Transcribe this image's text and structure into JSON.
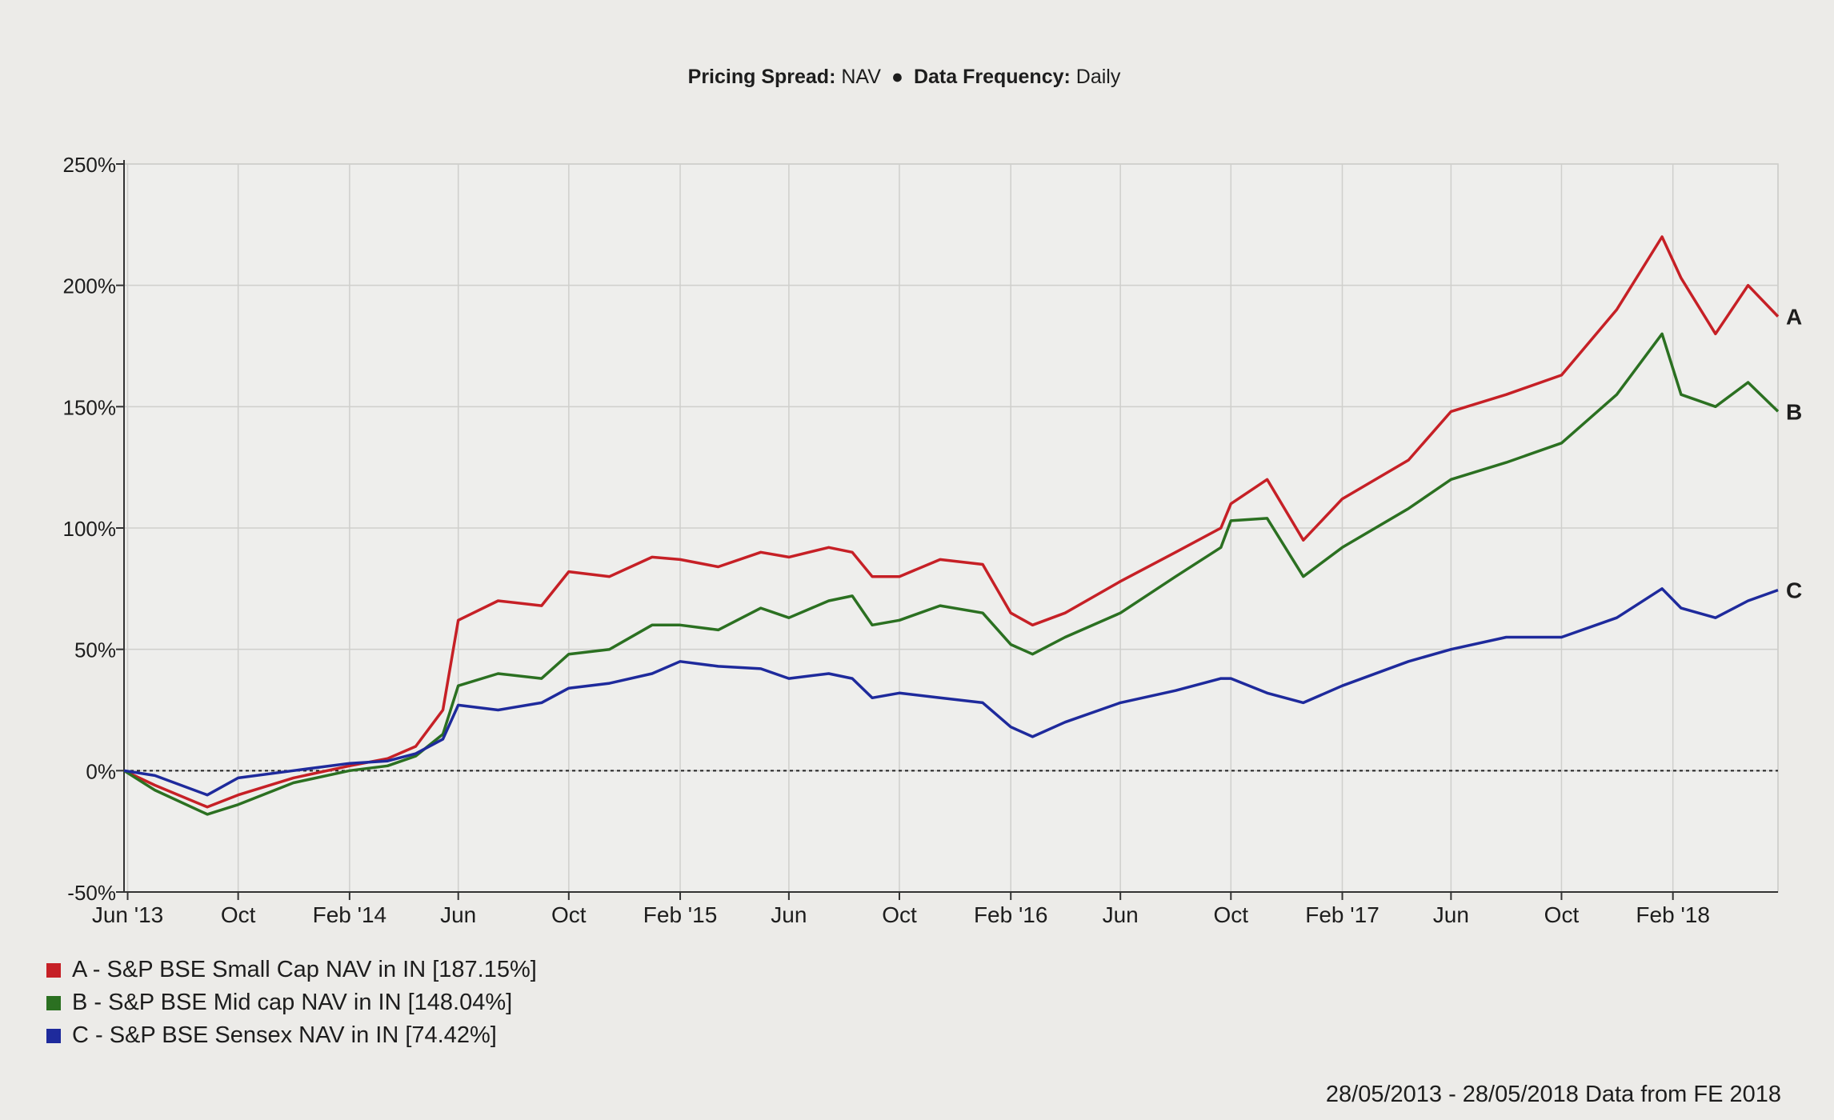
{
  "header": {
    "pricing_label": "Pricing Spread:",
    "pricing_value": "NAV",
    "separator": "●",
    "frequency_label": "Data Frequency:",
    "frequency_value": "Daily"
  },
  "footer_note": "28/05/2013 - 28/05/2018 Data from FE 2018",
  "chart_data": {
    "type": "line",
    "title": "",
    "xlabel": "",
    "ylabel": "",
    "xlim": [
      "2013-05-28",
      "2018-05-28"
    ],
    "ylim": [
      -50,
      250
    ],
    "y_ticks": [
      -50,
      0,
      50,
      100,
      150,
      200,
      250
    ],
    "y_tick_labels": [
      "-50%",
      "0%",
      "50%",
      "100%",
      "150%",
      "200%",
      "250%"
    ],
    "x_ticks": [
      "2013-06-01",
      "2013-10-01",
      "2014-02-01",
      "2014-06-01",
      "2014-10-01",
      "2015-02-01",
      "2015-06-01",
      "2015-10-01",
      "2016-02-01",
      "2016-06-01",
      "2016-10-01",
      "2017-02-01",
      "2017-06-01",
      "2017-10-01",
      "2018-02-01"
    ],
    "x_tick_labels": [
      "Jun '13",
      "Oct",
      "Feb '14",
      "Jun",
      "Oct",
      "Feb '15",
      "Jun",
      "Oct",
      "Feb '16",
      "Jun",
      "Oct",
      "Feb '17",
      "Jun",
      "Oct",
      "Feb '18"
    ],
    "grid": true,
    "reference_line": 0,
    "legend_position": "bottom-left",
    "x": [
      "2013-05-28",
      "2013-07-01",
      "2013-08-28",
      "2013-10-01",
      "2013-12-01",
      "2014-02-01",
      "2014-03-15",
      "2014-04-15",
      "2014-05-15",
      "2014-06-01",
      "2014-07-15",
      "2014-09-01",
      "2014-10-01",
      "2014-11-15",
      "2015-01-01",
      "2015-02-01",
      "2015-03-15",
      "2015-05-01",
      "2015-06-01",
      "2015-07-15",
      "2015-08-10",
      "2015-09-01",
      "2015-10-01",
      "2015-11-15",
      "2016-01-01",
      "2016-02-01",
      "2016-02-25",
      "2016-04-01",
      "2016-06-01",
      "2016-08-01",
      "2016-09-20",
      "2016-10-01",
      "2016-11-10",
      "2016-12-20",
      "2017-02-01",
      "2017-04-15",
      "2017-06-01",
      "2017-08-01",
      "2017-10-01",
      "2017-12-01",
      "2018-01-20",
      "2018-02-10",
      "2018-03-20",
      "2018-04-25",
      "2018-05-28"
    ],
    "series": [
      {
        "label": "A",
        "legend": "A - S&P BSE Small Cap NAV in IN [187.15%]",
        "color": "#c62026",
        "values": [
          0,
          -6,
          -15,
          -10,
          -3,
          2,
          5,
          10,
          25,
          62,
          70,
          68,
          82,
          80,
          88,
          87,
          84,
          90,
          88,
          92,
          90,
          80,
          80,
          87,
          85,
          65,
          60,
          65,
          78,
          90,
          100,
          110,
          120,
          95,
          112,
          128,
          148,
          155,
          163,
          190,
          220,
          203,
          180,
          200,
          187.15
        ]
      },
      {
        "label": "B",
        "legend": "B - S&P BSE Mid cap NAV in IN [148.04%]",
        "color": "#2b7021",
        "values": [
          0,
          -8,
          -18,
          -14,
          -5,
          0,
          2,
          6,
          15,
          35,
          40,
          38,
          48,
          50,
          60,
          60,
          58,
          67,
          63,
          70,
          72,
          60,
          62,
          68,
          65,
          52,
          48,
          55,
          65,
          80,
          92,
          103,
          104,
          80,
          92,
          108,
          120,
          127,
          135,
          155,
          180,
          155,
          150,
          160,
          148.04
        ]
      },
      {
        "label": "C",
        "legend": "C - S&P BSE Sensex NAV in IN [74.42%]",
        "color": "#1e2a9c",
        "values": [
          0,
          -2,
          -10,
          -3,
          0,
          3,
          4,
          7,
          13,
          27,
          25,
          28,
          34,
          36,
          40,
          45,
          43,
          42,
          38,
          40,
          38,
          30,
          32,
          30,
          28,
          18,
          14,
          20,
          28,
          33,
          38,
          38,
          32,
          28,
          35,
          45,
          50,
          55,
          55,
          63,
          75,
          67,
          63,
          70,
          74.42
        ]
      }
    ]
  }
}
